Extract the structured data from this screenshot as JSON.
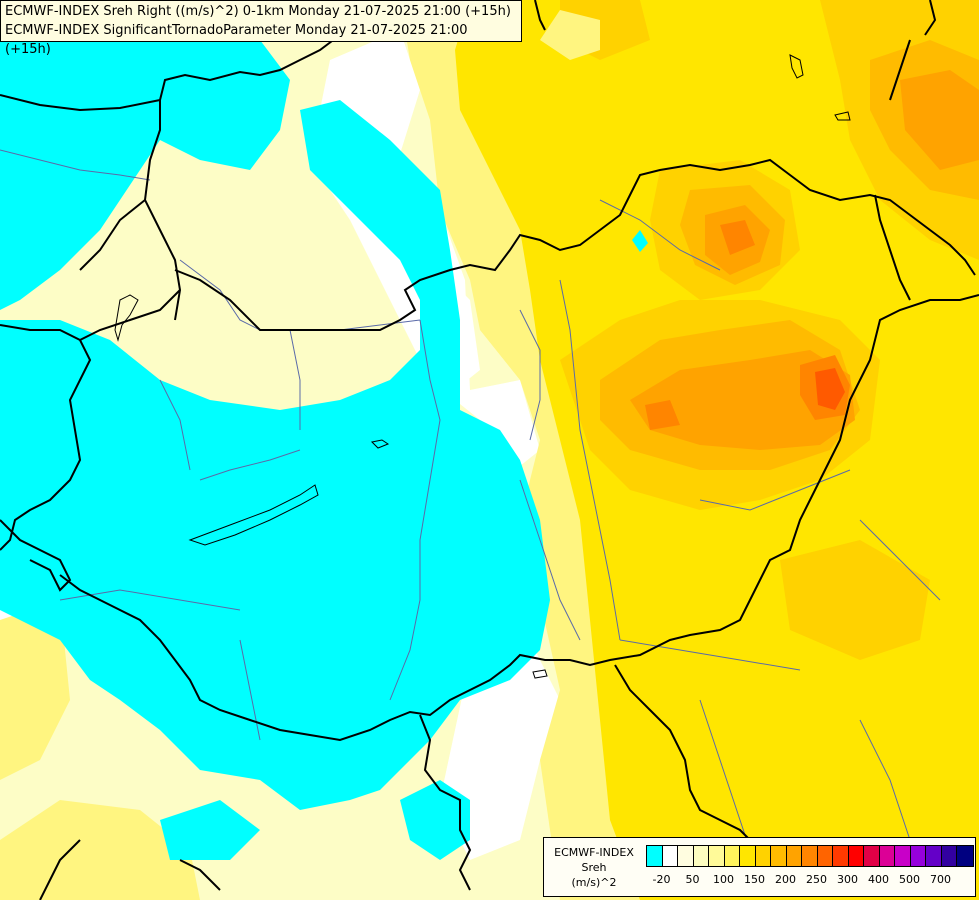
{
  "header": {
    "line1": "ECMWF-INDEX Sreh Right ((m/s)^2) 0-1km Monday 21-07-2025 21:00 (+15h)",
    "line2": "ECMWF-INDEX SignificantTornadoParameter Monday 21-07-2025 21:00 (+15h)"
  },
  "legend": {
    "title_1": "ECMWF-INDEX",
    "title_2": "Sreh",
    "title_3": "(m/s)^2",
    "colors": [
      "#00ffff",
      "#ffffff",
      "#fffde0",
      "#fdfdc0",
      "#fffa99",
      "#fff45c",
      "#ffe600",
      "#ffd200",
      "#ffbb00",
      "#ffa300",
      "#ff8500",
      "#ff6400",
      "#ff3a00",
      "#ff0000",
      "#e10046",
      "#dc0096",
      "#c800c8",
      "#9600dc",
      "#6400c8",
      "#3200a0",
      "#000080"
    ],
    "ticks": [
      "-20",
      "50",
      "100",
      "150",
      "200",
      "250",
      "300",
      "400",
      "500",
      "700"
    ]
  },
  "palette": {
    "cyan": "#00ffff",
    "white": "#ffffff",
    "pale": "#fdfdc6",
    "light_yellow": "#fff580",
    "yellow": "#ffe600",
    "gold": "#ffd200",
    "orange_light": "#ffbb00",
    "orange": "#ffa300",
    "orange_dark": "#ff8500",
    "red_orange": "#ff5a00",
    "border": "#000000",
    "river": "#5a6aa8"
  }
}
